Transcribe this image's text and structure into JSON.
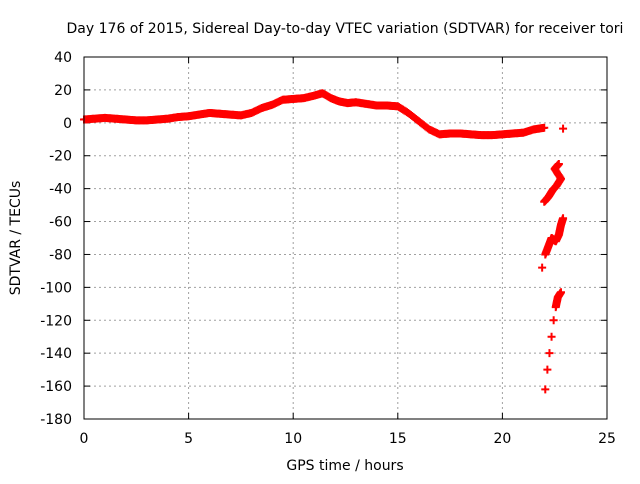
{
  "chart_data": {
    "type": "scatter",
    "title": "Day 176 of 2015, Sidereal Day-to-day VTEC variation (SDTVAR) for receiver tori",
    "xlabel": "GPS time / hours",
    "ylabel": "SDTVAR / TECUs",
    "xlim": [
      0,
      25
    ],
    "ylim": [
      -180,
      40
    ],
    "xticks": [
      0,
      5,
      10,
      15,
      20,
      25
    ],
    "yticks": [
      40,
      20,
      0,
      -20,
      -40,
      -60,
      -80,
      -100,
      -120,
      -140,
      -160,
      -180
    ],
    "grid": true,
    "marker": "plus",
    "series_color": "#ff0000",
    "series": [
      {
        "points": [
          [
            0.0,
            2.0
          ],
          [
            0.5,
            2.5
          ],
          [
            1.0,
            3.0
          ],
          [
            1.5,
            2.5
          ],
          [
            2.0,
            2.0
          ],
          [
            2.5,
            1.5
          ],
          [
            3.0,
            1.5
          ],
          [
            3.5,
            2.0
          ],
          [
            4.0,
            2.5
          ],
          [
            4.5,
            3.5
          ],
          [
            5.0,
            4.0
          ],
          [
            5.5,
            5.0
          ],
          [
            6.0,
            6.0
          ],
          [
            6.5,
            5.5
          ],
          [
            7.0,
            5.0
          ],
          [
            7.5,
            4.5
          ],
          [
            8.0,
            6.0
          ],
          [
            8.5,
            9.0
          ],
          [
            9.0,
            11.0
          ],
          [
            9.5,
            14.0
          ],
          [
            10.0,
            14.5
          ],
          [
            10.5,
            15.0
          ],
          [
            11.0,
            16.5
          ],
          [
            11.4,
            18.0
          ],
          [
            11.8,
            15.0
          ],
          [
            12.2,
            13.0
          ],
          [
            12.6,
            12.0
          ],
          [
            13.0,
            12.5
          ],
          [
            13.5,
            11.5
          ],
          [
            14.0,
            10.5
          ],
          [
            14.5,
            10.5
          ],
          [
            15.0,
            10.0
          ],
          [
            15.5,
            6.0
          ],
          [
            16.0,
            1.0
          ],
          [
            16.5,
            -4.0
          ],
          [
            17.0,
            -7.0
          ],
          [
            17.5,
            -6.5
          ],
          [
            18.0,
            -6.5
          ],
          [
            18.5,
            -7.0
          ],
          [
            19.0,
            -7.5
          ],
          [
            19.5,
            -7.5
          ],
          [
            20.0,
            -7.0
          ],
          [
            20.5,
            -6.5
          ],
          [
            21.0,
            -6.0
          ],
          [
            21.5,
            -4.0
          ],
          [
            22.0,
            -3.0
          ],
          [
            22.9,
            -3.5
          ],
          [
            22.0,
            -48
          ],
          [
            22.2,
            -45
          ],
          [
            22.4,
            -41
          ],
          [
            22.6,
            -38
          ],
          [
            22.8,
            -34
          ],
          [
            22.5,
            -28
          ],
          [
            22.7,
            -25
          ],
          [
            21.9,
            -88
          ],
          [
            22.05,
            -80
          ],
          [
            22.2,
            -75
          ],
          [
            22.35,
            -70
          ],
          [
            22.55,
            -72
          ],
          [
            22.7,
            -68
          ],
          [
            22.8,
            -62
          ],
          [
            22.9,
            -58
          ],
          [
            22.05,
            -162
          ],
          [
            22.15,
            -150
          ],
          [
            22.25,
            -140
          ],
          [
            22.35,
            -130
          ],
          [
            22.45,
            -120
          ],
          [
            22.55,
            -112
          ],
          [
            22.65,
            -106
          ],
          [
            22.8,
            -103
          ]
        ]
      }
    ]
  }
}
